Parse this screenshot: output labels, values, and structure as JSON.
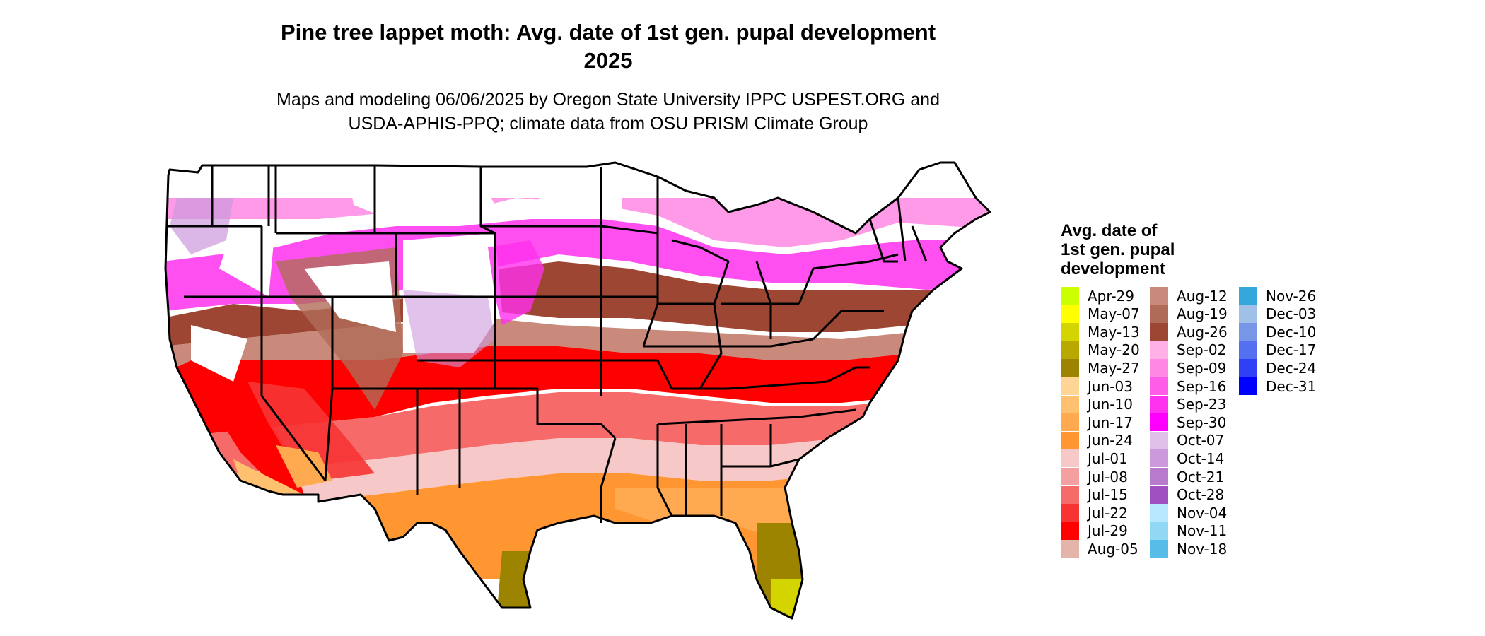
{
  "title": {
    "line1": "Pine tree lappet moth: Avg. date of 1st gen. pupal development",
    "line2": "2025"
  },
  "subtitle": {
    "line1": "Maps and modeling 06/06/2025 by Oregon State University IPPC USPEST.ORG and",
    "line2": "USDA-APHIS-PPQ; climate data from OSU PRISM Climate Group"
  },
  "legend": {
    "title_line1": "Avg. date of",
    "title_line2": "1st gen. pupal",
    "title_line3": "development",
    "items": [
      {
        "label": "Apr-29",
        "color": "#ccff00"
      },
      {
        "label": "May-07",
        "color": "#ffff00"
      },
      {
        "label": "May-13",
        "color": "#d4d400"
      },
      {
        "label": "May-20",
        "color": "#b8a800"
      },
      {
        "label": "May-27",
        "color": "#9c8400"
      },
      {
        "label": "Jun-03",
        "color": "#ffd595"
      },
      {
        "label": "Jun-10",
        "color": "#ffc070"
      },
      {
        "label": "Jun-17",
        "color": "#ffaa50"
      },
      {
        "label": "Jun-24",
        "color": "#ff9632"
      },
      {
        "label": "Jul-01",
        "color": "#f7c8c8"
      },
      {
        "label": "Jul-08",
        "color": "#f5a0a0"
      },
      {
        "label": "Jul-15",
        "color": "#f76a6a"
      },
      {
        "label": "Jul-22",
        "color": "#f73434"
      },
      {
        "label": "Jul-29",
        "color": "#ff0000"
      },
      {
        "label": "Aug-05",
        "color": "#e4b4aa"
      },
      {
        "label": "Aug-12",
        "color": "#c98a7c"
      },
      {
        "label": "Aug-19",
        "color": "#b06b58"
      },
      {
        "label": "Aug-26",
        "color": "#9e4634"
      },
      {
        "label": "Sep-02",
        "color": "#ffb0e6"
      },
      {
        "label": "Sep-09",
        "color": "#ff88e4"
      },
      {
        "label": "Sep-16",
        "color": "#ff5ce8"
      },
      {
        "label": "Sep-23",
        "color": "#ff30ee"
      },
      {
        "label": "Sep-30",
        "color": "#ff00ff"
      },
      {
        "label": "Oct-07",
        "color": "#e0c0e8"
      },
      {
        "label": "Oct-14",
        "color": "#cc99dd"
      },
      {
        "label": "Oct-21",
        "color": "#b87acc"
      },
      {
        "label": "Oct-28",
        "color": "#a050c0"
      },
      {
        "label": "Nov-04",
        "color": "#b8e8ff"
      },
      {
        "label": "Nov-11",
        "color": "#90d8f4"
      },
      {
        "label": "Nov-18",
        "color": "#58bce8"
      },
      {
        "label": "Nov-26",
        "color": "#34a8dc"
      },
      {
        "label": "Dec-03",
        "color": "#a0c0e8"
      },
      {
        "label": "Dec-10",
        "color": "#7896e8"
      },
      {
        "label": "Dec-17",
        "color": "#5470f0"
      },
      {
        "label": "Dec-24",
        "color": "#3040f4"
      },
      {
        "label": "Dec-31",
        "color": "#0000ff"
      }
    ]
  }
}
